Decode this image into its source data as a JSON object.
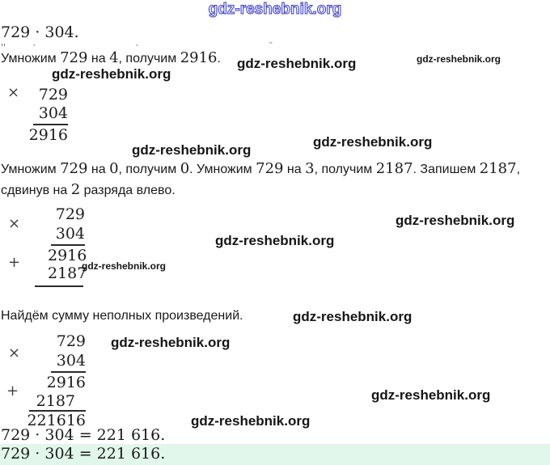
{
  "site": {
    "watermark_text": "gdz-reshebnik.org"
  },
  "header": {
    "watermark_text": "gdz-reshebnik.org"
  },
  "problem": {
    "parts": [
      {
        "t": "729 · 304.",
        "m": true
      }
    ]
  },
  "ghost": {
    "f1": "''",
    "f2": "ˊ",
    "f3": "ˊ",
    "f4": "¨"
  },
  "steps": {
    "step1": {
      "parts": [
        {
          "t": "Умножим ",
          "m": false
        },
        {
          "t": "729",
          "m": true
        },
        {
          "t": " на ",
          "m": false
        },
        {
          "t": "4",
          "m": true
        },
        {
          "t": ", получим ",
          "m": false
        },
        {
          "t": "2916",
          "m": true
        },
        {
          "t": ".",
          "m": false
        }
      ]
    },
    "step2": {
      "parts": [
        {
          "t": "Умножим ",
          "m": false
        },
        {
          "t": "729",
          "m": true
        },
        {
          "t": " на ",
          "m": false
        },
        {
          "t": "0",
          "m": true
        },
        {
          "t": ", получим ",
          "m": false
        },
        {
          "t": "0",
          "m": true
        },
        {
          "t": ". Умножим ",
          "m": false
        },
        {
          "t": "729",
          "m": true
        },
        {
          "t": " на ",
          "m": false
        },
        {
          "t": "3",
          "m": true
        },
        {
          "t": ", получим ",
          "m": false
        },
        {
          "t": "2187",
          "m": true
        },
        {
          "t": ". Запишем ",
          "m": false
        },
        {
          "t": "2187",
          "m": true
        },
        {
          "t": ", сдвинув на ",
          "m": false
        },
        {
          "t": "2",
          "m": true
        },
        {
          "t": " разряда влево.",
          "m": false
        }
      ]
    },
    "step3": {
      "parts": [
        {
          "t": "Найдём сумму неполных произведений.",
          "m": false
        }
      ]
    }
  },
  "mult": {
    "times_sign": "×",
    "plus_sign": "+",
    "multiplicand": "729",
    "multiplier": "304",
    "partial_product_1": "2916",
    "partial_product_2": "2187",
    "product": "221616"
  },
  "result": {
    "parts": [
      {
        "t": "729 · 304 = 221 616.",
        "m": true
      }
    ]
  },
  "result_highlighted": {
    "parts": [
      {
        "t": "729 · 304 = 221 616.",
        "m": true
      }
    ]
  },
  "colors": {
    "highlight_bg": "#e2f7ec",
    "watermark_blue": "#4141c8",
    "text_color": "#1d1d1d"
  }
}
